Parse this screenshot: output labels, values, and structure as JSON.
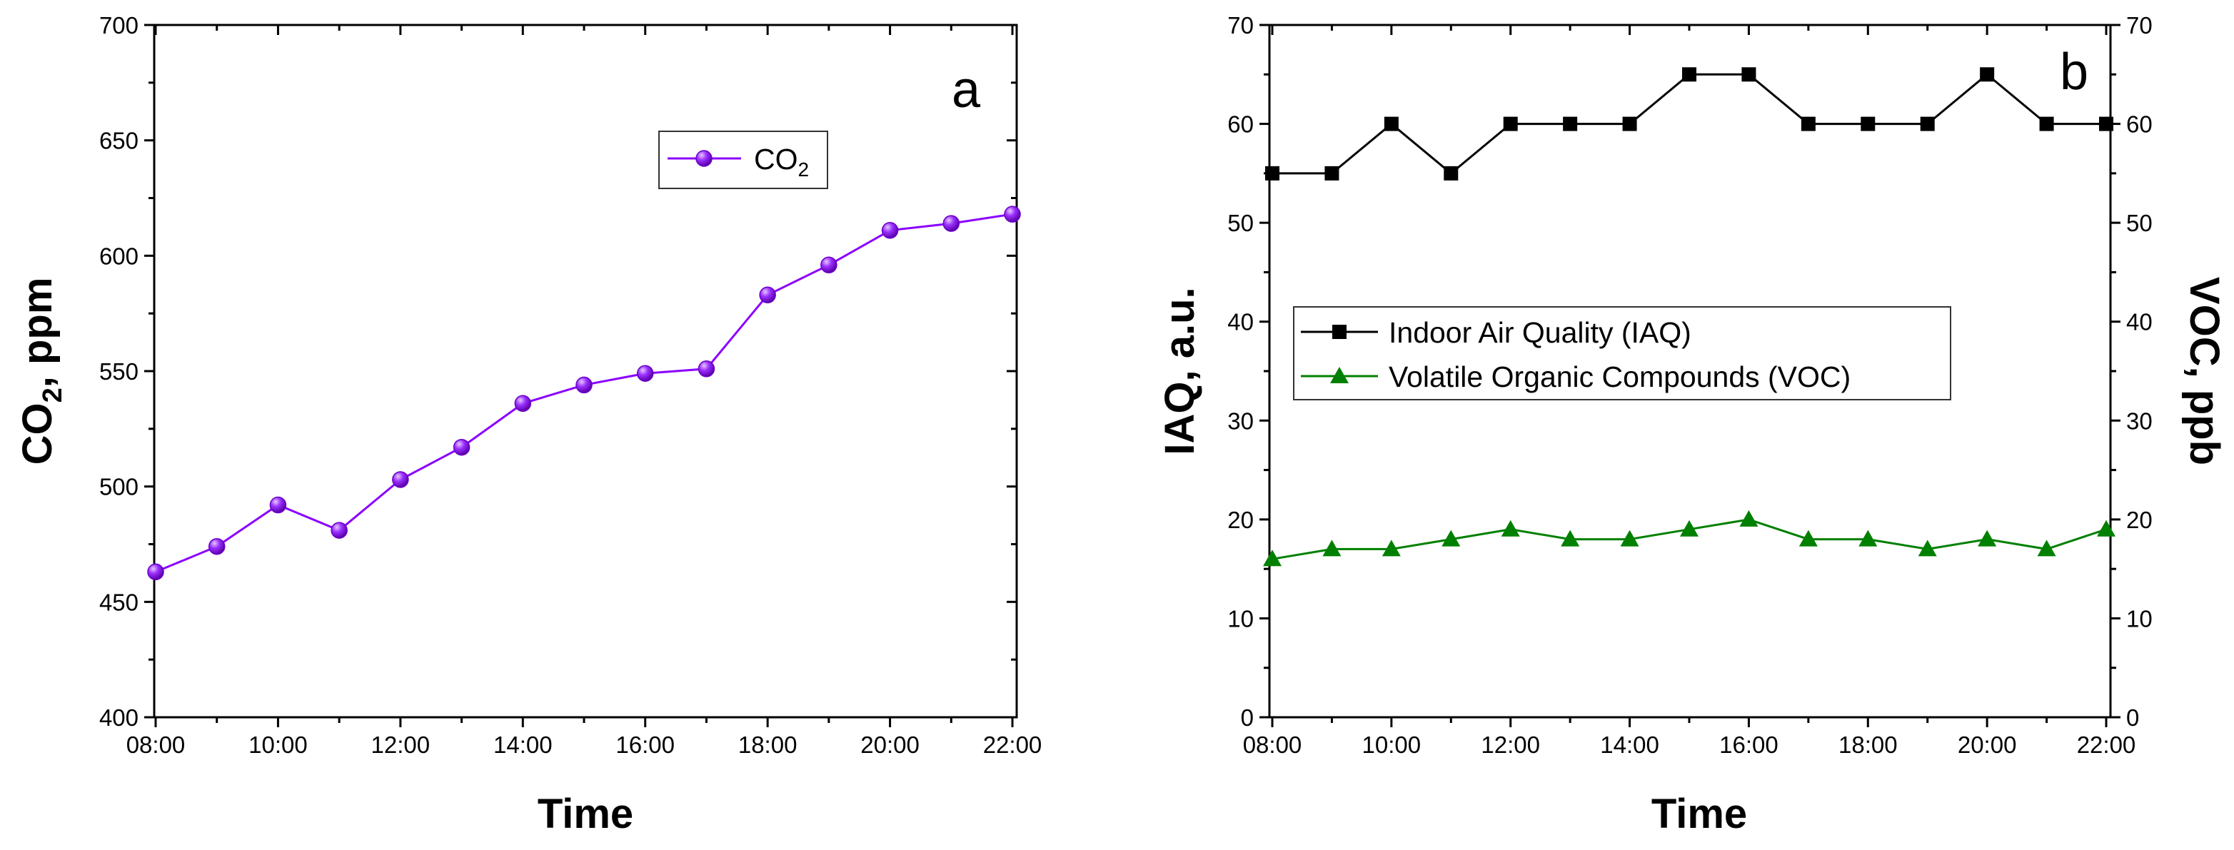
{
  "chart_data": [
    {
      "type": "line",
      "panel_label": "a",
      "x": [
        "08:00",
        "09:00",
        "10:00",
        "11:00",
        "12:00",
        "13:00",
        "14:00",
        "15:00",
        "16:00",
        "17:00",
        "18:00",
        "19:00",
        "20:00",
        "21:00",
        "22:00"
      ],
      "x_tick_labels": [
        "08:00",
        "10:00",
        "12:00",
        "14:00",
        "16:00",
        "18:00",
        "20:00",
        "22:00"
      ],
      "xlabel": "Time",
      "ylabel": {
        "main": "CO",
        "sub": "2",
        "rest": ", ppm"
      },
      "ylim": [
        400,
        700
      ],
      "y_ticks": [
        400,
        450,
        500,
        550,
        600,
        650,
        700
      ],
      "grid": false,
      "legend_position": "top-right",
      "series": [
        {
          "name": "CO2",
          "label": {
            "main": "CO",
            "sub": "2"
          },
          "color": "#8B00FF",
          "marker": "sphere",
          "values": [
            463,
            474,
            492,
            481,
            503,
            517,
            536,
            544,
            549,
            551,
            583,
            596,
            611,
            614,
            618
          ]
        }
      ]
    },
    {
      "type": "line",
      "panel_label": "b",
      "x": [
        "08:00",
        "09:00",
        "10:00",
        "11:00",
        "12:00",
        "13:00",
        "14:00",
        "15:00",
        "16:00",
        "17:00",
        "18:00",
        "19:00",
        "20:00",
        "21:00",
        "22:00"
      ],
      "x_tick_labels": [
        "08:00",
        "10:00",
        "12:00",
        "14:00",
        "16:00",
        "18:00",
        "20:00",
        "22:00"
      ],
      "xlabel": "Time",
      "ylabel": "IAQ, a.u.",
      "ylabel_right": "VOC, ppb",
      "ylim": [
        0,
        70
      ],
      "ylim_right": [
        0,
        70
      ],
      "y_ticks": [
        0,
        10,
        20,
        30,
        40,
        50,
        60,
        70
      ],
      "grid": false,
      "legend_position": "center-right",
      "series": [
        {
          "name": "Indoor Air Quality (IAQ)",
          "color": "#000000",
          "marker": "square",
          "axis": "left",
          "values": [
            55,
            55,
            60,
            55,
            60,
            60,
            60,
            65,
            65,
            60,
            60,
            60,
            65,
            60,
            60
          ]
        },
        {
          "name": "Volatile Organic Compounds (VOC)",
          "color": "#008000",
          "marker": "triangle",
          "axis": "right",
          "values": [
            16,
            17,
            17,
            18,
            19,
            18,
            18,
            19,
            20,
            18,
            18,
            17,
            18,
            17,
            19
          ]
        }
      ]
    }
  ]
}
